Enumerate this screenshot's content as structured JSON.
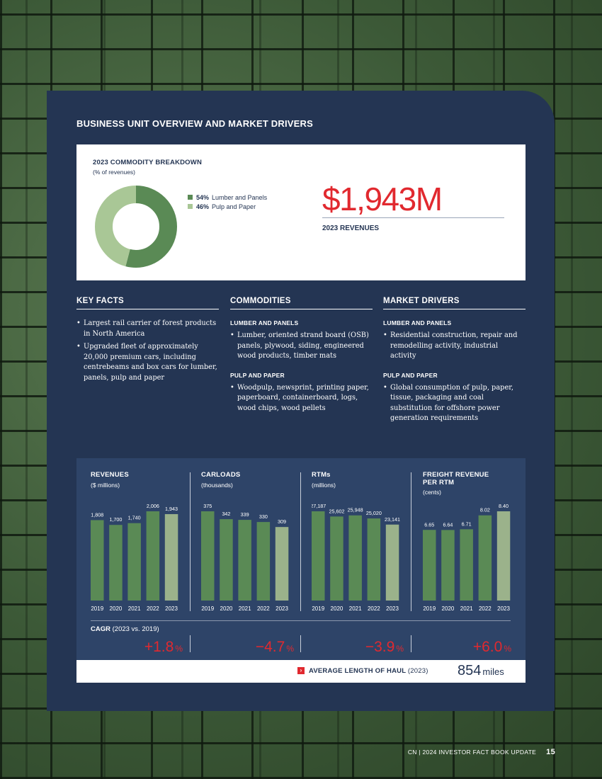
{
  "section_title": "BUSINESS UNIT OVERVIEW AND MARKET DRIVERS",
  "commodity_breakdown": {
    "title": "2023 COMMODITY BREAKDOWN",
    "subtitle": "(% of revenues)",
    "legend": [
      {
        "pct": "54%",
        "label": "Lumber and Panels",
        "color": "#5a8a55"
      },
      {
        "pct": "46%",
        "label": "Pulp and Paper",
        "color": "#a9c796"
      }
    ],
    "chart_data": {
      "type": "pie",
      "categories": [
        "Lumber and Panels",
        "Pulp and Paper"
      ],
      "values": [
        54,
        46
      ],
      "colors": [
        "#5a8a55",
        "#a9c796"
      ]
    }
  },
  "revenue_highlight": {
    "value": "$1,943M",
    "label": "2023 REVENUES"
  },
  "key_facts": {
    "heading": "KEY FACTS",
    "bullets": [
      "Largest rail carrier of forest products in North America",
      "Upgraded fleet of approximately 20,000 premium cars, including centrebeams and box cars for lumber, panels, pulp and paper"
    ]
  },
  "commodities": {
    "heading": "COMMODITIES",
    "groups": [
      {
        "subheading": "LUMBER AND PANELS",
        "bullet": "Lumber, oriented strand board (OSB) panels, plywood, siding, engineered wood products, timber mats"
      },
      {
        "subheading": "PULP AND PAPER",
        "bullet": "Woodpulp, newsprint, printing paper, paperboard, containerboard, logs, wood chips, wood pellets"
      }
    ]
  },
  "market_drivers": {
    "heading": "MARKET DRIVERS",
    "groups": [
      {
        "subheading": "LUMBER AND PANELS",
        "bullet": "Residential construction, repair and remodelling activity, industrial activity"
      },
      {
        "subheading": "PULP AND PAPER",
        "bullet": "Global consumption of pulp, paper, tissue, packaging and coal substitution for offshore power generation requirements"
      }
    ]
  },
  "charts": [
    {
      "title": "REVENUES",
      "unit": "($ millions)",
      "labels": [
        "1,808",
        "1,700",
        "1,740",
        "2,006",
        "1,943"
      ],
      "chart_data": {
        "type": "bar",
        "categories": [
          "2019",
          "2020",
          "2021",
          "2022",
          "2023"
        ],
        "values": [
          1808,
          1700,
          1740,
          2006,
          1943
        ]
      }
    },
    {
      "title": "CARLOADS",
      "unit": "(thousands)",
      "labels": [
        "375",
        "342",
        "339",
        "330",
        "309"
      ],
      "chart_data": {
        "type": "bar",
        "categories": [
          "2019",
          "2020",
          "2021",
          "2022",
          "2023"
        ],
        "values": [
          375,
          342,
          339,
          330,
          309
        ]
      }
    },
    {
      "title": "RTMs",
      "unit": "(millions)",
      "labels": [
        "27,187",
        "25,602",
        "25,948",
        "25,020",
        "23,141"
      ],
      "chart_data": {
        "type": "bar",
        "categories": [
          "2019",
          "2020",
          "2021",
          "2022",
          "2023"
        ],
        "values": [
          27187,
          25602,
          25948,
          25020,
          23141
        ]
      }
    },
    {
      "title": "FREIGHT REVENUE PER RTM",
      "unit": "(cents)",
      "labels": [
        "6.65",
        "6.64",
        "6.71",
        "8.02",
        "8.40"
      ],
      "chart_data": {
        "type": "bar",
        "categories": [
          "2019",
          "2020",
          "2021",
          "2022",
          "2023"
        ],
        "values": [
          6.65,
          6.64,
          6.71,
          8.02,
          8.4
        ]
      }
    }
  ],
  "bar_colors": {
    "past": "#5a8a55",
    "current": "#9bb28b"
  },
  "cagr": {
    "label": "CAGR",
    "period": "(2023 vs. 2019)",
    "values": [
      {
        "value": "+1.8",
        "unit": "%"
      },
      {
        "value": "−4.7",
        "unit": "%"
      },
      {
        "value": "−3.9",
        "unit": "%"
      },
      {
        "value": "+6.0",
        "unit": "%"
      }
    ]
  },
  "length_of_haul": {
    "label": "AVERAGE LENGTH OF HAUL",
    "year": "(2023)",
    "value": "854",
    "unit": "miles"
  },
  "footer": {
    "text": "CN  |  2024 INVESTOR FACT BOOK UPDATE",
    "page": "15"
  }
}
